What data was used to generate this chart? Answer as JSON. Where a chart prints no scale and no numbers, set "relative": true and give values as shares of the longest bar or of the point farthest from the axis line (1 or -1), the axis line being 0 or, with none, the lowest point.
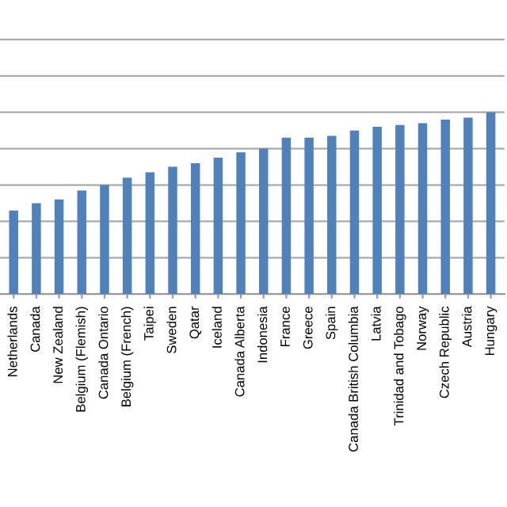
{
  "chart_data": {
    "type": "bar",
    "relative": true,
    "grid": "y",
    "color": "#4f81bd",
    "categories": [
      "Netherlands",
      "Canada",
      "New Zealand",
      "Belgium (Flemish)",
      "Canada Ontario",
      "Belgium (French)",
      "Taipei",
      "Sweden",
      "Qatar",
      "Iceland",
      "Canada Alberta",
      "Indonesia",
      "France",
      "Greece",
      "Spain",
      "Canada British Columbia",
      "Latvia",
      "Trinidad and Tobago",
      "Norway",
      "Czech Republic",
      "Austria",
      "Hungary"
    ],
    "values": [
      0.46,
      0.5,
      0.52,
      0.57,
      0.6,
      0.64,
      0.67,
      0.7,
      0.72,
      0.75,
      0.78,
      0.8,
      0.86,
      0.86,
      0.87,
      0.9,
      0.92,
      0.93,
      0.94,
      0.96,
      0.97,
      1.0
    ]
  }
}
